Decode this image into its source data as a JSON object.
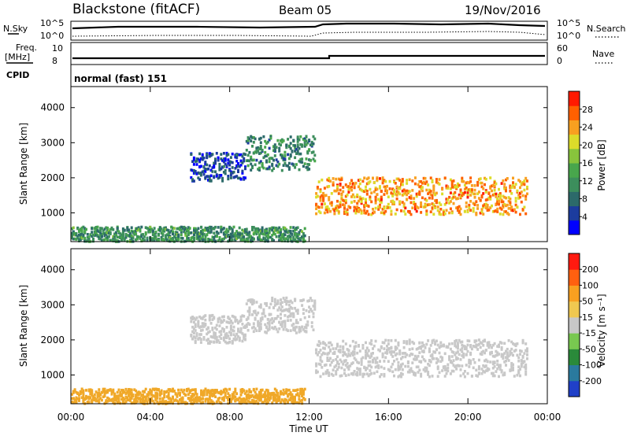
{
  "header": {
    "station": "Blackstone (fitACF)",
    "beam": "Beam 05",
    "date": "19/Nov/2016"
  },
  "top_panels": {
    "nsky": {
      "label": "N.Sky",
      "ticks": [
        "10^5",
        "10^0"
      ]
    },
    "nsearch": {
      "label": "N.Search",
      "ticks": [
        "10^5",
        "10^0"
      ]
    },
    "freq": {
      "label_line1": "Freq.",
      "label_line2": "[MHz]",
      "ticks": [
        "10",
        "8"
      ]
    },
    "nave": {
      "label": "Nave",
      "ticks": [
        "60",
        "0"
      ]
    },
    "cpid": {
      "label": "CPID",
      "value": "normal (fast) 151"
    }
  },
  "chart_data": [
    {
      "type": "heatmap",
      "name": "power-panel",
      "ylabel": "Slant Range [km]",
      "xlabel": "",
      "ylim": [
        180,
        4600
      ],
      "xlim_hours": [
        0,
        24
      ],
      "yticks": [
        "4000",
        "3000",
        "2000",
        "1000"
      ],
      "colorbar_label": "Power [dB]",
      "colorbar_ticks": [
        "28",
        "24",
        "20",
        "16",
        "12",
        "8",
        "4"
      ],
      "colorbar_colors": [
        "#0000ff",
        "#1c3c9e",
        "#2c6a6a",
        "#3c8e5c",
        "#48a64c",
        "#88c43c",
        "#dcdc2a",
        "#f8a020",
        "#ff6000",
        "#ff1a00"
      ],
      "echo_bands": [
        {
          "t0": 0,
          "t1": 11.8,
          "r0": 180,
          "r1": 600,
          "level": 0.35
        },
        {
          "t0": 6.0,
          "t1": 8.8,
          "r0": 1900,
          "r1": 2700,
          "level": 0.12
        },
        {
          "t0": 8.8,
          "t1": 12.3,
          "r0": 2200,
          "r1": 3200,
          "level": 0.3
        },
        {
          "t0": 12.3,
          "t1": 23.0,
          "r0": 950,
          "r1": 2000,
          "level": 0.8
        }
      ]
    },
    {
      "type": "heatmap",
      "name": "velocity-panel",
      "ylabel": "Slant Range [km]",
      "xlabel": "Time UT",
      "ylim": [
        180,
        4600
      ],
      "xlim_hours": [
        0,
        24
      ],
      "yticks": [
        "4000",
        "3000",
        "2000",
        "1000"
      ],
      "xticks": [
        "00:00",
        "04:00",
        "08:00",
        "12:00",
        "16:00",
        "20:00",
        "00:00"
      ],
      "colorbar_label": "Velocity [m s⁻¹]",
      "colorbar_ticks": [
        "200",
        "100",
        "50",
        "15",
        "-15",
        "-50",
        "-100",
        "-200"
      ],
      "colorbar_colors": [
        "#2040c8",
        "#2a7a9e",
        "#2a8a3a",
        "#78c850",
        "#c8c8c8",
        "#f0c850",
        "#f8a020",
        "#ff6010",
        "#ff1a10"
      ],
      "echo_bands": [
        {
          "t0": 0,
          "t1": 11.8,
          "r0": 180,
          "r1": 600,
          "color": "#f0a828"
        },
        {
          "t0": 6.0,
          "t1": 8.8,
          "r0": 1900,
          "r1": 2700,
          "color": "#c8c8c8"
        },
        {
          "t0": 8.8,
          "t1": 12.3,
          "r0": 2200,
          "r1": 3200,
          "color": "#c8c8c8"
        },
        {
          "t0": 12.3,
          "t1": 23.0,
          "r0": 950,
          "r1": 2000,
          "color": "#c8c8c8"
        }
      ]
    }
  ]
}
